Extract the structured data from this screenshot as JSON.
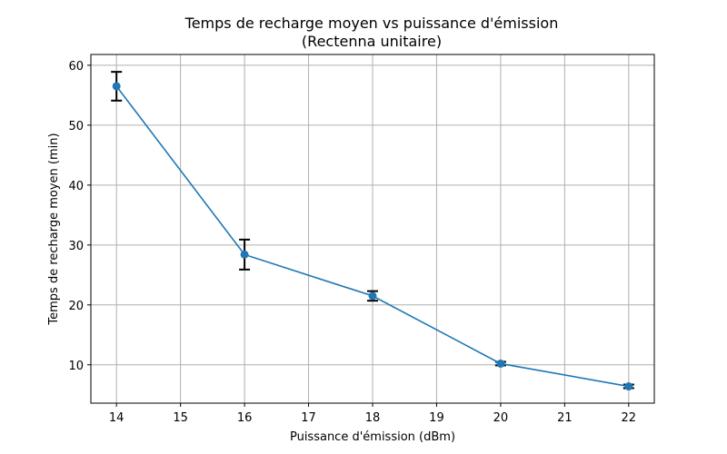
{
  "chart_data": {
    "type": "line",
    "title": [
      "Temps de recharge moyen vs puissance d'émission",
      "(Rectenna unitaire)"
    ],
    "xlabel": "Puissance d'émission (dBm)",
    "ylabel": "Temps de recharge moyen (min)",
    "xlim": [
      13.6,
      22.4
    ],
    "ylim": [
      3.6,
      61.8
    ],
    "xticks": [
      14,
      15,
      16,
      17,
      18,
      19,
      20,
      21,
      22
    ],
    "yticks": [
      10,
      20,
      30,
      40,
      50,
      60
    ],
    "grid": true,
    "line_color": "#1f77b4",
    "errorbar_color": "#000000",
    "series": [
      {
        "x": [
          14,
          16,
          18,
          20,
          22
        ],
        "y": [
          56.5,
          28.4,
          21.5,
          10.2,
          6.4
        ],
        "yerr": [
          2.4,
          2.5,
          0.8,
          0.3,
          0.3
        ]
      }
    ]
  }
}
